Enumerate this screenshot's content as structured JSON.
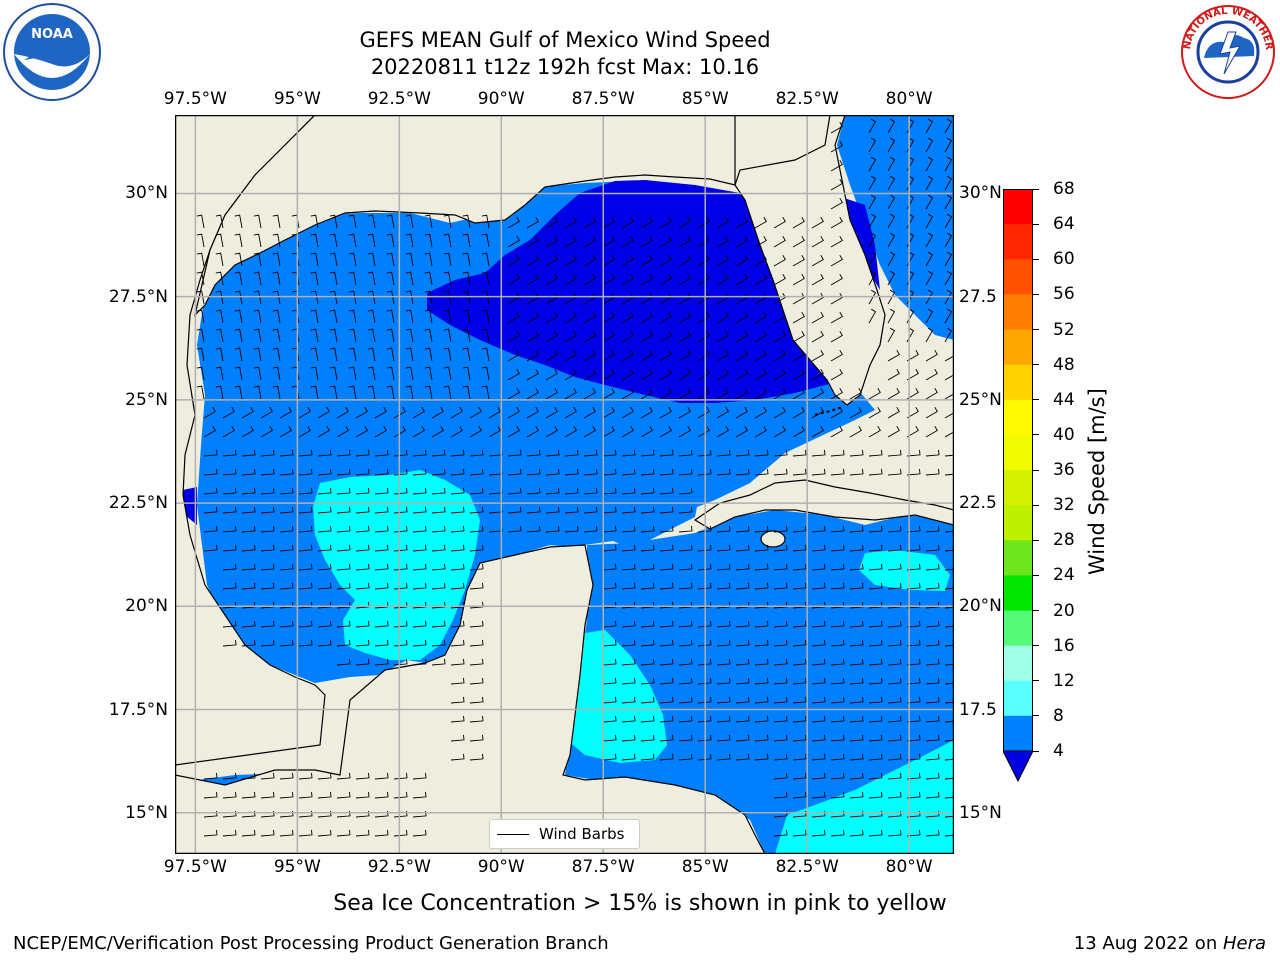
{
  "title": {
    "line1": "GEFS MEAN Gulf of Mexico Wind Speed",
    "line2": "20220811 t12z 192h fcst   Max: 10.16"
  },
  "lon_labels": [
    "97.5°W",
    "95°W",
    "92.5°W",
    "90°W",
    "87.5°W",
    "85°W",
    "82.5°W",
    "80°W"
  ],
  "lat_labels_left": [
    "30°N",
    "27.5°N",
    "25°N",
    "22.5°N",
    "20°N",
    "17.5°N",
    "15°N"
  ],
  "lat_labels_right": [
    "30°N",
    "27.5",
    "25°N",
    "22.5",
    "20°N",
    "17.5",
    "15°N"
  ],
  "legend": {
    "label": "Wind Barbs"
  },
  "colorbar": {
    "label": "Wind Speed [m/s]",
    "ticks": [
      "68",
      "64",
      "60",
      "56",
      "52",
      "48",
      "44",
      "40",
      "36",
      "32",
      "28",
      "24",
      "20",
      "16",
      "12",
      "8",
      "4"
    ],
    "colors": [
      "#ff0000",
      "#ff2600",
      "#ff5100",
      "#ff7d00",
      "#ffa600",
      "#ffd200",
      "#fffa00",
      "#f0fa00",
      "#d2f000",
      "#bef000",
      "#6ee61e",
      "#00e600",
      "#55fa78",
      "#a0ffe6",
      "#5affff",
      "#00ffff",
      "#0080ff"
    ],
    "extend_color": "#0000e0"
  },
  "note": "Sea Ice Concentration > 15% is shown in pink to yellow",
  "footer": {
    "left": "NCEP/EMC/Verification Post Processing Product Generation Branch",
    "date": "13 Aug 2022 on ",
    "host": "Hera"
  },
  "logos": {
    "left": "NOAA",
    "right": "NATIONAL WEATHER SERVICE"
  },
  "colors": {
    "land": "#efedde",
    "water_4_8": "#0080ff",
    "water_lt4": "#0000e6",
    "water_8_12": "#00ffff",
    "grid": "#b0b0b0"
  }
}
